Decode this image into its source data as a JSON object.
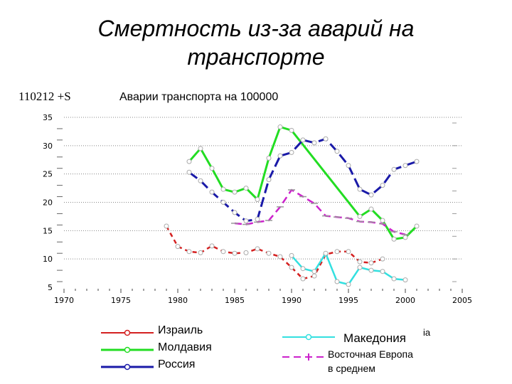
{
  "page": {
    "title_line1": "Смертность из-за аварий на",
    "title_line2": "транспорте",
    "code_label": "110212 +S"
  },
  "chart_data": {
    "type": "line",
    "title": "Аварии транспорта на 100000",
    "xlabel": "",
    "ylabel": "",
    "xlim": [
      1970,
      2005
    ],
    "ylim": [
      5,
      35
    ],
    "x_ticks": [
      1970,
      1975,
      1980,
      1985,
      1990,
      1995,
      2000,
      2005
    ],
    "y_ticks": [
      5,
      10,
      15,
      20,
      25,
      30,
      35
    ],
    "series": [
      {
        "name": "Израиль",
        "color": "#d42020",
        "dash": "6,5",
        "marker": "circle",
        "x": [
          1979,
          1980,
          1981,
          1982,
          1983,
          1984,
          1985,
          1986,
          1987,
          1988,
          1989,
          1990,
          1991,
          1992,
          1993,
          1994,
          1995,
          1996,
          1997,
          1998
        ],
        "y": [
          15.8,
          12.2,
          11.3,
          11.1,
          12.3,
          11.3,
          11.0,
          11.1,
          11.8,
          11.0,
          10.4,
          8.5,
          6.5,
          7.0,
          10.8,
          11.3,
          11.3,
          9.5,
          9.3,
          10.0
        ]
      },
      {
        "name": "Молдавия",
        "color": "#22dd22",
        "dash": "",
        "marker": "circle",
        "x": [
          1981,
          1982,
          1983,
          1984,
          1985,
          1986,
          1987,
          1988,
          1989,
          1990,
          1996,
          1997,
          1998,
          1999,
          2000,
          2001
        ],
        "y": [
          27.2,
          29.5,
          26.0,
          22.3,
          21.8,
          22.5,
          20.5,
          27.8,
          33.3,
          32.7,
          17.5,
          18.8,
          16.8,
          13.5,
          13.8,
          15.8
        ]
      },
      {
        "name": "Россия",
        "color": "#1a1aa8",
        "dash": "14,6",
        "marker": "circle",
        "x": [
          1981,
          1982,
          1983,
          1984,
          1985,
          1986,
          1987,
          1988,
          1989,
          1990,
          1991,
          1992,
          1993,
          1994,
          1995,
          1996,
          1997,
          1998,
          1999,
          2000,
          2001
        ],
        "y": [
          25.3,
          23.8,
          21.8,
          20.0,
          18.2,
          16.7,
          17.0,
          24.0,
          28.2,
          28.8,
          31.0,
          30.5,
          31.2,
          29.0,
          26.5,
          22.3,
          21.3,
          23.0,
          25.8,
          26.5,
          27.2
        ]
      },
      {
        "name": "Македония",
        "color": "#33e0e0",
        "dash": "",
        "marker": "circle",
        "x": [
          1990,
          1991,
          1992,
          1993,
          1994,
          1995,
          1996,
          1997,
          1998,
          1999,
          2000
        ],
        "y": [
          10.6,
          8.3,
          7.8,
          11.0,
          6.0,
          5.5,
          8.5,
          8.0,
          7.8,
          6.5,
          6.3
        ]
      },
      {
        "name": "Восточная Европа в среднем",
        "color": "#cc22cc",
        "dash": "10,6",
        "marker": "bar",
        "x": [
          1985,
          1986,
          1987,
          1988,
          1989,
          1990,
          1991,
          1992,
          1993,
          1994,
          1995,
          1996,
          1997,
          1998,
          1999,
          2000
        ],
        "y": [
          16.3,
          16.1,
          16.5,
          16.8,
          19.2,
          22.2,
          21.0,
          19.8,
          17.6,
          17.4,
          17.2,
          16.6,
          16.5,
          16.2,
          14.8,
          14.3
        ]
      }
    ]
  },
  "legend": [
    {
      "key": "israel",
      "label": "Израиль"
    },
    {
      "key": "moldova",
      "label": "Молдавия"
    },
    {
      "key": "russia",
      "label": "Россия"
    },
    {
      "key": "macedonia",
      "label": "Македония",
      "suffix": "ia"
    },
    {
      "key": "east_europe",
      "label_line1": "Восточная Европа",
      "label_line2": "в среднем"
    }
  ]
}
